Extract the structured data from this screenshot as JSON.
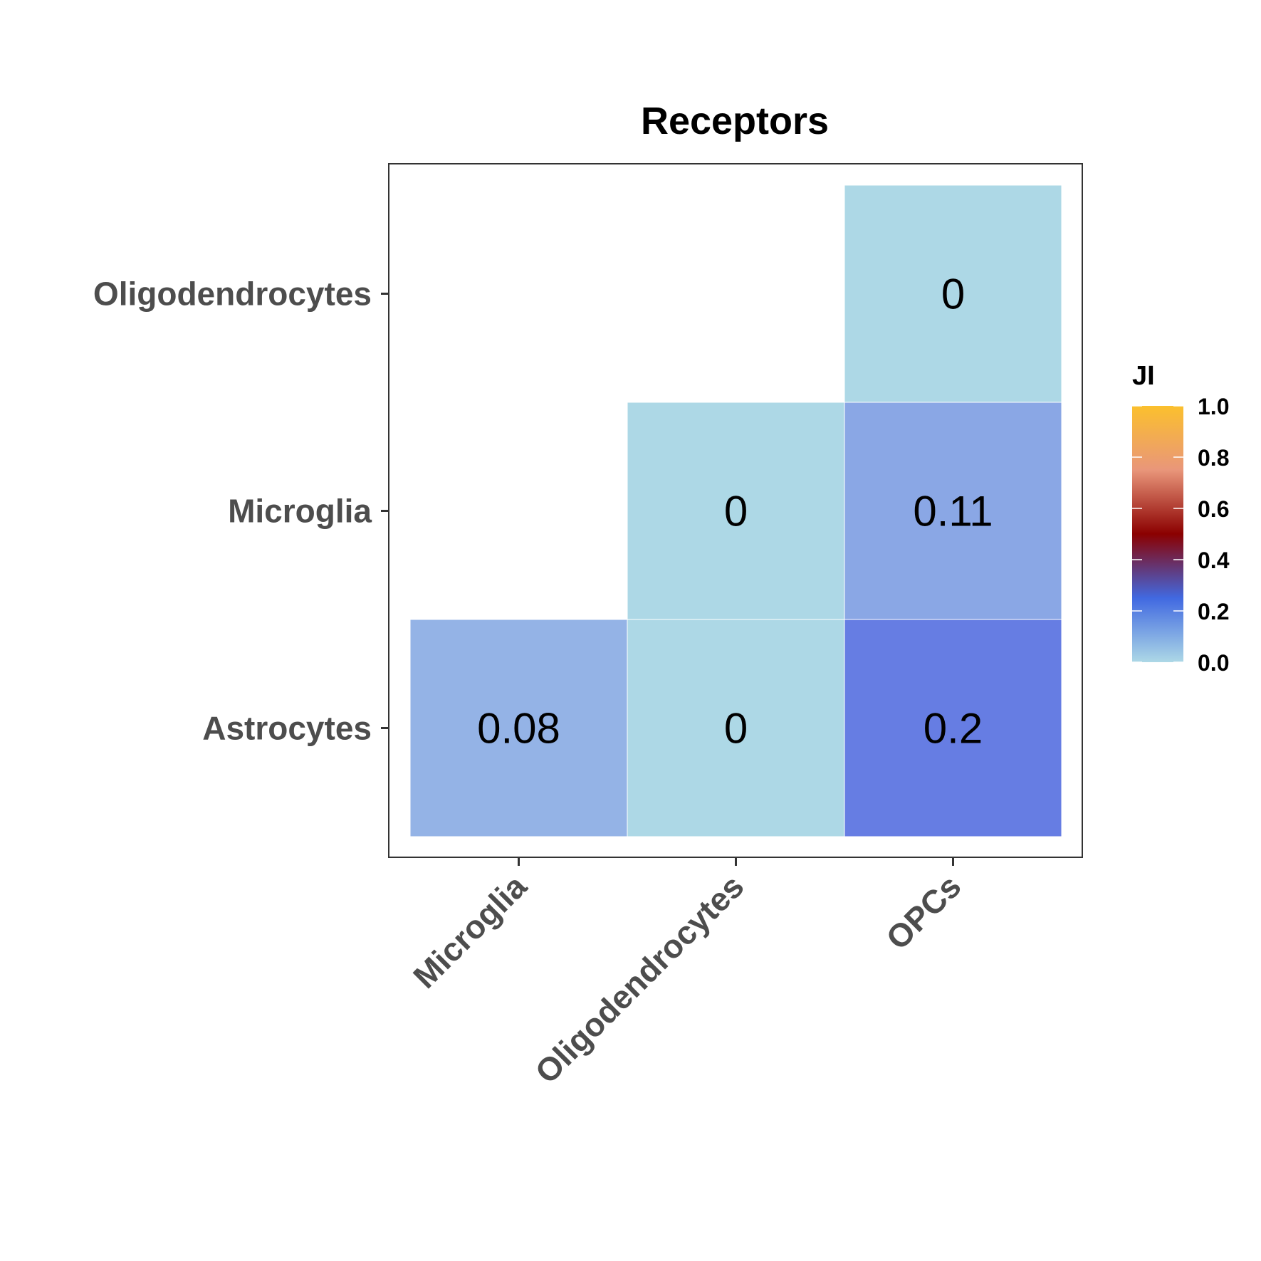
{
  "chart_data": {
    "type": "heatmap",
    "title": "Receptors",
    "x_categories": [
      "Microglia",
      "Oligodendrocytes",
      "OPCs"
    ],
    "y_categories": [
      "Astrocytes",
      "Microglia",
      "Oligodendrocytes"
    ],
    "cells": [
      {
        "x": "Microglia",
        "y": "Astrocytes",
        "value": 0.08,
        "label": "0.08",
        "color": "#94b3e6"
      },
      {
        "x": "Oligodendrocytes",
        "y": "Astrocytes",
        "value": 0,
        "label": "0",
        "color": "#add8e6"
      },
      {
        "x": "OPCs",
        "y": "Astrocytes",
        "value": 0.2,
        "label": "0.2",
        "color": "#667de3"
      },
      {
        "x": "Oligodendrocytes",
        "y": "Microglia",
        "value": 0,
        "label": "0",
        "color": "#add8e6"
      },
      {
        "x": "OPCs",
        "y": "Microglia",
        "value": 0.11,
        "label": "0.11",
        "color": "#8aa7e5"
      },
      {
        "x": "OPCs",
        "y": "Oligodendrocytes",
        "value": 0,
        "label": "0",
        "color": "#add8e6"
      }
    ],
    "legend": {
      "title": "JI",
      "position": "right",
      "range": [
        0,
        1
      ],
      "ticks": [
        "0.0",
        "0.2",
        "0.4",
        "0.6",
        "0.8",
        "1.0"
      ],
      "tick_values": [
        0,
        0.2,
        0.4,
        0.6,
        0.8,
        1.0
      ],
      "gradient": [
        {
          "value": 0.0,
          "color": "#add8e6"
        },
        {
          "value": 0.25,
          "color": "#4169e1"
        },
        {
          "value": 0.5,
          "color": "#8b0000"
        },
        {
          "value": 0.75,
          "color": "#e9967a"
        },
        {
          "value": 1.0,
          "color": "#fbc02d"
        }
      ]
    }
  }
}
